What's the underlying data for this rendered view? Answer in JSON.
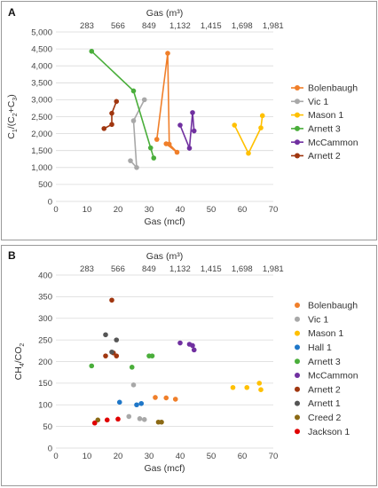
{
  "chart_data": [
    {
      "panel_label": "A",
      "type": "line",
      "xlabel": "Gas (mcf)",
      "x2label": "Gas (m³)",
      "ylabel_main": "C",
      "ylabel_sub1": "1",
      "ylabel_mid": "/(C",
      "ylabel_sub2": "2",
      "ylabel_mid2": "+C",
      "ylabel_sub3": "3",
      "ylabel_end": ")",
      "xlim": [
        0,
        70
      ],
      "ylim": [
        0,
        5000
      ],
      "xticks": [
        "0",
        "10",
        "20",
        "30",
        "40",
        "50",
        "60",
        "70"
      ],
      "yticks": [
        "0",
        "500",
        "1,000",
        "1,500",
        "2,000",
        "2,500",
        "3,000",
        "3,500",
        "4,000",
        "4,500",
        "5,000"
      ],
      "x2ticks": [
        "283",
        "566",
        "849",
        "1,132",
        "1,415",
        "1,698",
        "1,981"
      ],
      "legend_position": "right",
      "series": [
        {
          "name": "Bolenbaugh",
          "color": "#F07F2A",
          "x": [
            32.5,
            36,
            36.5,
            39,
            35.5
          ],
          "y": [
            1830,
            4370,
            1690,
            1450,
            1700
          ]
        },
        {
          "name": "Vic 1",
          "color": "#A8A8A8",
          "x": [
            28.5,
            25,
            26,
            24
          ],
          "y": [
            3000,
            2380,
            1000,
            1200
          ]
        },
        {
          "name": "Mason 1",
          "color": "#FFC000",
          "x": [
            57.5,
            62,
            66,
            66.5
          ],
          "y": [
            2250,
            1420,
            2170,
            2530
          ]
        },
        {
          "name": "Arnett 3",
          "color": "#4AAE3B",
          "x": [
            11.5,
            25,
            30.5,
            31.5
          ],
          "y": [
            4430,
            3260,
            1580,
            1280
          ]
        },
        {
          "name": "McCammon",
          "color": "#7030A0",
          "x": [
            40,
            43,
            44,
            44.5
          ],
          "y": [
            2250,
            1570,
            2620,
            2080
          ]
        },
        {
          "name": "Arnett 2",
          "color": "#A0360F",
          "x": [
            15.5,
            18,
            18,
            19.5
          ],
          "y": [
            2150,
            2270,
            2600,
            2950
          ]
        }
      ]
    },
    {
      "panel_label": "B",
      "type": "scatter",
      "xlabel": "Gas (mcf)",
      "x2label": "Gas (m³)",
      "ylabel_main": "CH",
      "ylabel_sub1": "4",
      "ylabel_mid": "/CO",
      "ylabel_sub2": "2",
      "xlim": [
        0,
        70
      ],
      "ylim": [
        0,
        400
      ],
      "xticks": [
        "0",
        "10",
        "20",
        "30",
        "40",
        "50",
        "60",
        "70"
      ],
      "yticks": [
        "0",
        "50",
        "100",
        "150",
        "200",
        "250",
        "300",
        "350",
        "400"
      ],
      "x2ticks": [
        "283",
        "566",
        "849",
        "1,132",
        "1,415",
        "1,698",
        "1,981"
      ],
      "legend_position": "right",
      "series": [
        {
          "name": "Bolenbaugh",
          "color": "#F07F2A",
          "x": [
            32,
            35.5,
            38.5
          ],
          "y": [
            117,
            116,
            113
          ]
        },
        {
          "name": "Vic 1",
          "color": "#A8A8A8",
          "x": [
            23.5,
            25,
            27,
            28.5
          ],
          "y": [
            73,
            146,
            68,
            66
          ]
        },
        {
          "name": "Mason 1",
          "color": "#FFC000",
          "x": [
            57,
            61.5,
            65.5,
            66
          ],
          "y": [
            140,
            140,
            150,
            135
          ]
        },
        {
          "name": "Hall 1",
          "color": "#1F77C8",
          "x": [
            20.5,
            26,
            27.5
          ],
          "y": [
            106,
            100,
            103
          ]
        },
        {
          "name": "Arnett 3",
          "color": "#4AAE3B",
          "x": [
            11.5,
            24.5,
            30,
            31
          ],
          "y": [
            190,
            187,
            213,
            213
          ]
        },
        {
          "name": "McCammon",
          "color": "#7030A0",
          "x": [
            40,
            43,
            44,
            44.5
          ],
          "y": [
            243,
            240,
            237,
            227
          ]
        },
        {
          "name": "Arnett 2",
          "color": "#A0360F",
          "x": [
            16,
            18,
            18.5,
            19.5
          ],
          "y": [
            213,
            342,
            220,
            213
          ]
        },
        {
          "name": "Arnett 1",
          "color": "#555555",
          "x": [
            16,
            18,
            19.5
          ],
          "y": [
            262,
            222,
            250
          ]
        },
        {
          "name": "Creed 2",
          "color": "#8B6914",
          "x": [
            13.5,
            33,
            34
          ],
          "y": [
            65,
            60,
            60
          ]
        },
        {
          "name": "Jackson 1",
          "color": "#E00000",
          "x": [
            12.5,
            16.5,
            20
          ],
          "y": [
            58,
            65,
            67
          ]
        }
      ]
    }
  ]
}
